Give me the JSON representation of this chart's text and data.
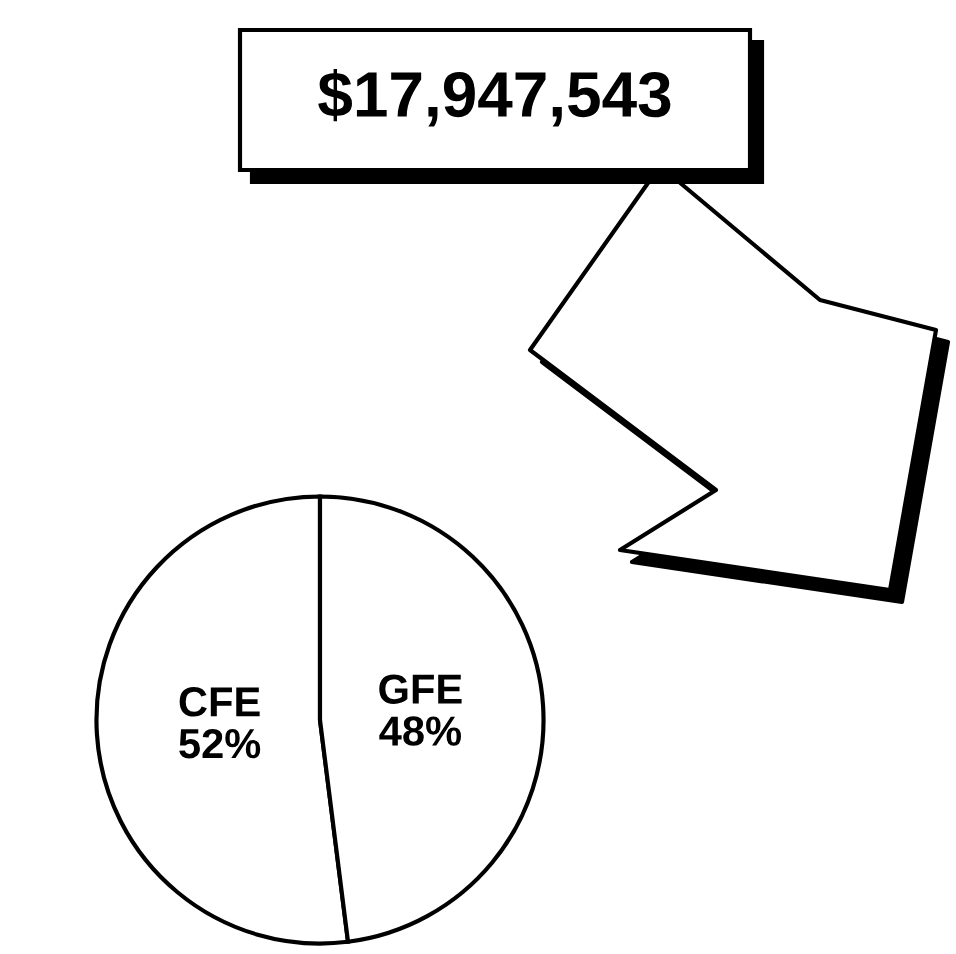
{
  "chart_data": {
    "type": "pie",
    "title": "$17,947,543",
    "categories": [
      "CFE",
      "GFE"
    ],
    "values": [
      52,
      48
    ],
    "value_labels": [
      "52%",
      "48%"
    ],
    "colors": [
      "#ffffff",
      "#ffffff"
    ]
  }
}
